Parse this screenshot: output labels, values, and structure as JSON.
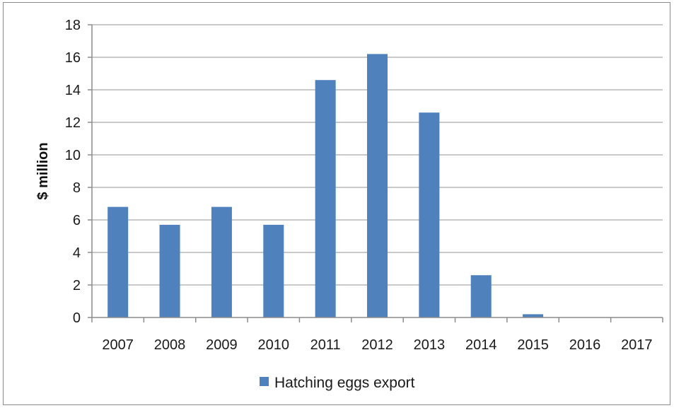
{
  "chart_data": {
    "type": "bar",
    "title": "",
    "xlabel": "",
    "ylabel": "$ million",
    "ylim": [
      0,
      18
    ],
    "y_ticks": [
      0,
      2,
      4,
      6,
      8,
      10,
      12,
      14,
      16,
      18
    ],
    "categories": [
      "2007",
      "2008",
      "2009",
      "2010",
      "2011",
      "2012",
      "2013",
      "2014",
      "2015",
      "2016",
      "2017"
    ],
    "series": [
      {
        "name": "Hatching eggs export",
        "color": "#4F81BD",
        "values": [
          6.8,
          5.7,
          6.8,
          5.7,
          14.6,
          16.2,
          12.6,
          2.6,
          0.2,
          0,
          0
        ]
      }
    ],
    "grid": "horizontal",
    "legend_position": "bottom"
  }
}
